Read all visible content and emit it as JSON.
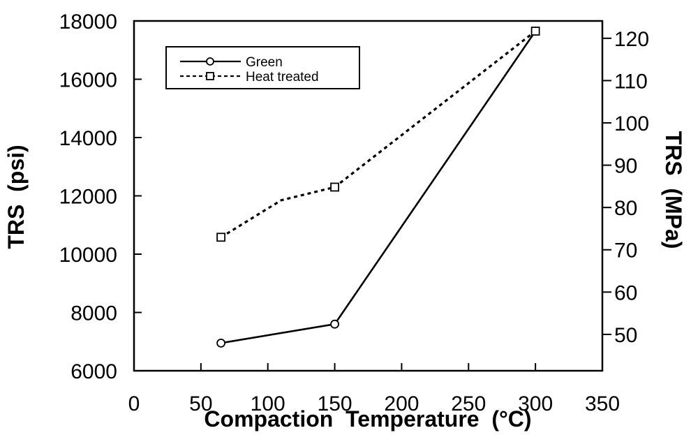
{
  "chart_data": {
    "type": "line",
    "title": "",
    "xlabel": "Compaction  Temperature  (°C)",
    "ylabel": "TRS  (psi)",
    "y2label": "TRS  (MPa)",
    "xlim": [
      0,
      350
    ],
    "ylim": [
      6000,
      18000
    ],
    "y2lim": [
      41.4,
      124.1
    ],
    "x_ticks": [
      0,
      50,
      100,
      150,
      200,
      250,
      300,
      350
    ],
    "y_ticks": [
      6000,
      8000,
      10000,
      12000,
      14000,
      16000,
      18000
    ],
    "y2_ticks": [
      50,
      60,
      70,
      80,
      90,
      100,
      110,
      120
    ],
    "grid": false,
    "legend_position": "top-left",
    "series": [
      {
        "name": "Green",
        "style": "solid",
        "marker": "circle",
        "x": [
          65,
          150,
          300
        ],
        "y": [
          6950,
          7600,
          17650
        ]
      },
      {
        "name": "Heat  treated",
        "style": "dashed",
        "marker": "square",
        "x": [
          65,
          110,
          150,
          300
        ],
        "y": [
          10580,
          11850,
          12300,
          17650
        ]
      }
    ]
  }
}
